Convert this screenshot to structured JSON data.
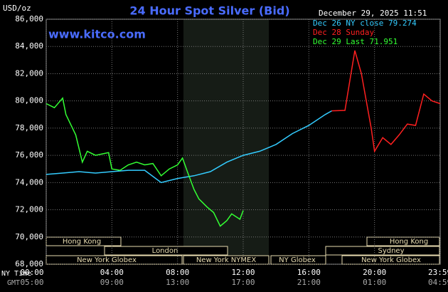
{
  "chart_data": {
    "type": "line",
    "title": "24 Hour Spot Silver (Bid)",
    "y_unit": "USD/oz",
    "timestamp": "December 29, 2025 11:51",
    "watermark": "www.kitco.com",
    "x_axis_label": "NY Time",
    "x2_axis_label": "GMT",
    "xlim": [
      0,
      24
    ],
    "xticks": [
      {
        "value": 0,
        "label": "00:00"
      },
      {
        "value": 4,
        "label": "04:00"
      },
      {
        "value": 8,
        "label": "08:00"
      },
      {
        "value": 12,
        "label": "12:00"
      },
      {
        "value": 16,
        "label": "16:00"
      },
      {
        "value": 20,
        "label": "20:00"
      },
      {
        "value": 23.983,
        "label": "23:59"
      }
    ],
    "x2ticks": [
      {
        "value": 0,
        "label": "05:00"
      },
      {
        "value": 4,
        "label": "09:00"
      },
      {
        "value": 8,
        "label": "13:00"
      },
      {
        "value": 12,
        "label": "17:00"
      },
      {
        "value": 16,
        "label": "21:00"
      },
      {
        "value": 20,
        "label": "01:00"
      },
      {
        "value": 23.983,
        "label": "04:59"
      }
    ],
    "ylim": [
      68,
      86
    ],
    "yticks": [
      {
        "value": 68,
        "label": "68,000"
      },
      {
        "value": 70,
        "label": "70,000"
      },
      {
        "value": 72,
        "label": "72,000"
      },
      {
        "value": 74,
        "label": "74,000"
      },
      {
        "value": 76,
        "label": "76,000"
      },
      {
        "value": 78,
        "label": "78,000"
      },
      {
        "value": 80,
        "label": "80,000"
      },
      {
        "value": 82,
        "label": "82,000"
      },
      {
        "value": 84,
        "label": "84,000"
      },
      {
        "value": 86,
        "label": "86,000"
      }
    ],
    "grid": true,
    "sessions": [
      "Hong Kong",
      "London",
      "New York Globex",
      "New York NYMEX",
      "NY Globex",
      "Hong Kong",
      "Sydney",
      "New York Globex"
    ],
    "series": [
      {
        "name": "Dec 26 NY close 79.274",
        "color": "#33ccff",
        "x": [
          0,
          1,
          2,
          3,
          4,
          5,
          6,
          7,
          8,
          9,
          10,
          11,
          12,
          13,
          14,
          15,
          16,
          17,
          17.4
        ],
        "values": [
          74.6,
          74.7,
          74.8,
          74.7,
          74.8,
          74.9,
          74.9,
          74.0,
          74.3,
          74.5,
          74.8,
          75.5,
          76.0,
          76.3,
          76.8,
          77.6,
          78.2,
          79.0,
          79.27
        ]
      },
      {
        "name": "Dec 28 Sunday",
        "color": "#ff2020",
        "x": [
          17.4,
          18.2,
          18.5,
          18.8,
          19.2,
          19.5,
          19.8,
          20,
          20.5,
          21,
          21.5,
          22,
          22.5,
          23,
          23.5,
          24
        ],
        "values": [
          79.27,
          79.3,
          81.5,
          83.7,
          82,
          80,
          78,
          76.3,
          77.3,
          76.8,
          77.5,
          78.3,
          78.2,
          80.5,
          80,
          79.8
        ]
      },
      {
        "name": "Dec 29 Last 71.951",
        "color": "#33ff33",
        "x": [
          0,
          0.5,
          1,
          1.2,
          1.8,
          2.2,
          2.5,
          3,
          3.8,
          4,
          4.5,
          5,
          5.5,
          6,
          6.5,
          7,
          7.5,
          8,
          8.3,
          8.6,
          9,
          9.3,
          9.8,
          10.2,
          10.6,
          11,
          11.3,
          11.8,
          12
        ],
        "values": [
          79.8,
          79.5,
          80.2,
          79.0,
          77.5,
          75.5,
          76.3,
          76.0,
          76.2,
          75.0,
          74.9,
          75.3,
          75.5,
          75.3,
          75.4,
          74.5,
          75.0,
          75.3,
          75.8,
          74.8,
          73.5,
          72.8,
          72.2,
          71.8,
          70.8,
          71.2,
          71.7,
          71.3,
          71.95
        ]
      }
    ]
  }
}
